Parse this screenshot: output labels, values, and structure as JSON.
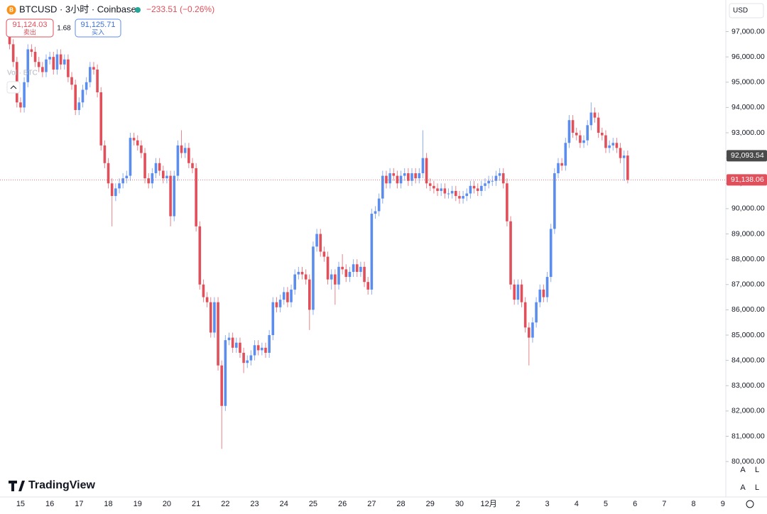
{
  "chart_data": {
    "type": "candlestick",
    "title": "BTCUSD · 3小时 · Coinbase",
    "change": "−233.51 (−0.26%)",
    "currency": "USD",
    "up_color": "#5b8def",
    "down_color": "#e04f5a",
    "categories": [
      null,
      null,
      null,
      "15",
      null,
      null,
      null,
      null,
      null,
      null,
      null,
      "16",
      null,
      null,
      null,
      null,
      null,
      null,
      null,
      "17",
      null,
      null,
      null,
      null,
      null,
      null,
      null,
      "18",
      null,
      null,
      null,
      null,
      null,
      null,
      null,
      "19",
      null,
      null,
      null,
      null,
      null,
      null,
      null,
      "20",
      null,
      null,
      null,
      null,
      null,
      null,
      null,
      "21",
      null,
      null,
      null,
      null,
      null,
      null,
      null,
      "22",
      null,
      null,
      null,
      null,
      null,
      null,
      null,
      "23",
      null,
      null,
      null,
      null,
      null,
      null,
      null,
      "24",
      null,
      null,
      null,
      null,
      null,
      null,
      null,
      "25",
      null,
      null,
      null,
      null,
      null,
      null,
      null,
      "26",
      null,
      null,
      null,
      null,
      null,
      null,
      null,
      "27",
      null,
      null,
      null,
      null,
      null,
      null,
      null,
      "28",
      null,
      null,
      null,
      null,
      null,
      null,
      null,
      "29",
      null,
      null,
      null,
      null,
      null,
      null,
      null,
      "30",
      null,
      null,
      null,
      null,
      null,
      null,
      null,
      "12月",
      null,
      null,
      null,
      null,
      null,
      null,
      null,
      "2",
      null,
      null,
      null,
      null,
      null,
      null,
      null,
      "3",
      null,
      null,
      null,
      null,
      null,
      null,
      null,
      "4",
      null,
      null,
      null,
      null,
      null,
      null,
      null,
      "5",
      null,
      null,
      null,
      null,
      null,
      null,
      null,
      "6",
      null,
      null,
      null,
      null,
      null,
      null,
      null,
      "7",
      null,
      null,
      null,
      null,
      null,
      null,
      null,
      "8",
      null,
      null,
      null,
      null,
      null,
      null,
      null,
      "9"
    ],
    "open": [
      96800,
      96500,
      95800,
      94200,
      94000,
      95000,
      96300,
      96200,
      95800,
      95600,
      95400,
      95900,
      96000,
      95500,
      96100,
      95700,
      95900,
      95200,
      94900,
      93900,
      94200,
      94700,
      95000,
      95600,
      95500,
      94600,
      92500,
      91800,
      91000,
      90500,
      90800,
      91000,
      91200,
      91300,
      92800,
      92700,
      92500,
      92200,
      91200,
      91000,
      91400,
      91800,
      91500,
      91200,
      91300,
      89700,
      91300,
      92500,
      92200,
      92400,
      91800,
      91600,
      89300,
      87000,
      86500,
      86300,
      85100,
      86300,
      83800,
      82200,
      84800,
      84900,
      84500,
      84700,
      84300,
      83900,
      84000,
      84200,
      84600,
      84400,
      84500,
      84300,
      85000,
      86300,
      86100,
      86400,
      86700,
      86300,
      86800,
      87400,
      87500,
      87400,
      87200,
      86000,
      88500,
      89000,
      88300,
      88100,
      87200,
      87400,
      87000,
      87700,
      87600,
      87300,
      87500,
      87800,
      87500,
      87700,
      87100,
      86800,
      89800,
      89900,
      90400,
      91300,
      91000,
      91400,
      91300,
      91000,
      91300,
      91400,
      91100,
      91400,
      91200,
      91400,
      92000,
      91000,
      90900,
      90800,
      90700,
      90800,
      90600,
      90600,
      90700,
      90500,
      90400,
      90500,
      90600,
      90900,
      90800,
      90700,
      90900,
      91000,
      91100,
      91100,
      91300,
      91400,
      91000,
      89500,
      87000,
      86400,
      87000,
      86300,
      85300,
      84900,
      85500,
      86300,
      86800,
      86500,
      87300,
      89200,
      91400,
      91800,
      91700,
      92600,
      93500,
      93000,
      92900,
      92600,
      92700,
      93300,
      93800,
      93600,
      93000,
      92900,
      92400,
      92500,
      92600,
      92400,
      92000,
      92100,
      null,
      null,
      null,
      null,
      null,
      null,
      null,
      null,
      null,
      null,
      null,
      null,
      null,
      null,
      null,
      null,
      null,
      null,
      null,
      null,
      null,
      null,
      null,
      null,
      null,
      null
    ],
    "high": [
      97000,
      96700,
      96000,
      94400,
      95200,
      96500,
      96500,
      96400,
      96000,
      95800,
      96100,
      96200,
      96200,
      96300,
      96300,
      96100,
      96100,
      95400,
      95100,
      94400,
      94900,
      95200,
      95800,
      95800,
      95700,
      94800,
      92700,
      92000,
      91200,
      91000,
      91200,
      91400,
      91500,
      93000,
      93000,
      92900,
      92700,
      92400,
      91400,
      91600,
      92000,
      92000,
      91700,
      91500,
      91500,
      91500,
      92700,
      93100,
      92600,
      92600,
      92000,
      91800,
      89500,
      87200,
      86700,
      86500,
      86500,
      86500,
      84000,
      85000,
      85100,
      85100,
      84900,
      84900,
      84500,
      84200,
      84400,
      84800,
      84800,
      84700,
      84700,
      85200,
      86500,
      86500,
      86600,
      86900,
      86900,
      87000,
      87600,
      87700,
      87700,
      87600,
      87400,
      88700,
      89200,
      89200,
      88500,
      88300,
      87600,
      87600,
      87900,
      88200,
      87800,
      87700,
      88000,
      88000,
      87900,
      87900,
      87300,
      90000,
      90100,
      90600,
      91500,
      91500,
      91600,
      91600,
      91500,
      91500,
      91600,
      91600,
      91600,
      91600,
      91600,
      93100,
      92200,
      91200,
      91100,
      91000,
      91000,
      91000,
      90800,
      90900,
      90900,
      90700,
      90700,
      90800,
      91100,
      91100,
      91000,
      91100,
      91200,
      91300,
      91300,
      91500,
      91600,
      91600,
      91200,
      89700,
      87200,
      87200,
      87200,
      86500,
      85500,
      85700,
      86500,
      87000,
      87000,
      87500,
      89400,
      91600,
      92000,
      92000,
      92800,
      93700,
      93700,
      93200,
      93100,
      92900,
      93500,
      94200,
      94000,
      93800,
      93200,
      93100,
      92700,
      92800,
      92800,
      92600,
      92300,
      92300,
      null,
      null,
      null,
      null,
      null,
      null,
      null,
      null,
      null,
      null,
      null,
      null,
      null,
      null,
      null,
      null,
      null,
      null,
      null,
      null,
      null,
      null,
      null,
      null,
      null,
      null
    ],
    "low": [
      96300,
      95600,
      94000,
      93800,
      93800,
      94800,
      96000,
      95600,
      95400,
      95200,
      95200,
      95700,
      95300,
      95300,
      95500,
      95500,
      95000,
      94700,
      93700,
      93700,
      94000,
      94500,
      94800,
      95300,
      94400,
      92300,
      91600,
      90800,
      89300,
      90300,
      90600,
      90800,
      91000,
      91100,
      92500,
      92300,
      92000,
      91000,
      90800,
      90800,
      91200,
      91300,
      91000,
      91000,
      89300,
      89500,
      91100,
      92000,
      92000,
      91600,
      91400,
      89100,
      86800,
      86300,
      86100,
      84900,
      84900,
      83600,
      80500,
      82000,
      84600,
      84300,
      84300,
      84100,
      83500,
      83700,
      83800,
      84000,
      84200,
      84200,
      84100,
      84100,
      84800,
      85900,
      85900,
      86200,
      86100,
      86100,
      86600,
      87200,
      87200,
      87000,
      85200,
      85800,
      88300,
      88100,
      87900,
      87000,
      86800,
      86200,
      86800,
      87400,
      87100,
      87100,
      87300,
      87300,
      87300,
      86900,
      86600,
      86600,
      89600,
      89700,
      90200,
      90800,
      90800,
      91100,
      90800,
      90800,
      91100,
      90900,
      90900,
      91000,
      91000,
      91200,
      90800,
      90700,
      90600,
      90500,
      90500,
      90400,
      90400,
      90400,
      90300,
      90200,
      90200,
      90300,
      90400,
      90600,
      90500,
      90500,
      90700,
      90800,
      90900,
      90900,
      91100,
      90800,
      89300,
      86800,
      86200,
      86200,
      86100,
      85100,
      83800,
      84700,
      85300,
      86100,
      86300,
      86300,
      87100,
      89000,
      91200,
      91500,
      91500,
      92400,
      92800,
      92700,
      92400,
      92400,
      92500,
      93100,
      93400,
      92800,
      92700,
      92200,
      92200,
      92300,
      92200,
      91800,
      91100,
      91000,
      null,
      null,
      null,
      null,
      null,
      null,
      null,
      null,
      null,
      null,
      null,
      null,
      null,
      null,
      null,
      null,
      null,
      null,
      null,
      null,
      null,
      null,
      null,
      null,
      null,
      null
    ],
    "close": [
      96500,
      95800,
      94200,
      94000,
      95000,
      96300,
      96200,
      95800,
      95600,
      95400,
      95900,
      96000,
      95500,
      96100,
      95700,
      95900,
      95200,
      94900,
      93900,
      94200,
      94700,
      95000,
      95600,
      95500,
      94600,
      92500,
      91800,
      91000,
      90500,
      90800,
      91000,
      91200,
      91300,
      92800,
      92700,
      92500,
      92200,
      91200,
      91000,
      91400,
      91800,
      91500,
      91200,
      91300,
      89700,
      91300,
      92500,
      92200,
      92400,
      91800,
      91600,
      89300,
      87000,
      86500,
      86300,
      85100,
      86300,
      83800,
      82200,
      84800,
      84900,
      84500,
      84700,
      84300,
      83900,
      84000,
      84200,
      84600,
      84400,
      84500,
      84300,
      85000,
      86300,
      86100,
      86400,
      86700,
      86300,
      86800,
      87400,
      87500,
      87400,
      87200,
      86000,
      88500,
      89000,
      88300,
      88100,
      87200,
      87400,
      87000,
      87700,
      87600,
      87300,
      87500,
      87800,
      87500,
      87700,
      87100,
      86800,
      89800,
      89900,
      90400,
      91300,
      91000,
      91400,
      91300,
      91000,
      91300,
      91400,
      91100,
      91400,
      91200,
      91400,
      92000,
      91000,
      90900,
      90800,
      90700,
      90800,
      90600,
      90600,
      90700,
      90500,
      90400,
      90500,
      90600,
      90900,
      90800,
      90700,
      90900,
      91000,
      91100,
      91100,
      91300,
      91400,
      91000,
      89500,
      87000,
      86400,
      87000,
      86300,
      85300,
      84900,
      85500,
      86300,
      86800,
      86500,
      87300,
      89200,
      91400,
      91800,
      91700,
      92600,
      93500,
      93000,
      92900,
      92600,
      92700,
      93300,
      93800,
      93600,
      93000,
      92900,
      92400,
      92500,
      92600,
      92400,
      92000,
      92100,
      91138,
      null,
      null,
      null,
      null,
      null,
      null,
      null,
      null,
      null,
      null,
      null,
      null,
      null,
      null,
      null,
      null,
      null,
      null,
      null,
      null,
      null,
      null,
      null,
      null,
      null,
      null
    ],
    "ylim": [
      78600,
      98250
    ],
    "yticks": [
      {
        "value": 80000,
        "label": "80,000.00"
      },
      {
        "value": 81000,
        "label": "81,000.00"
      },
      {
        "value": 82000,
        "label": "82,000.00"
      },
      {
        "value": 83000,
        "label": "83,000.00"
      },
      {
        "value": 84000,
        "label": "84,000.00"
      },
      {
        "value": 85000,
        "label": "85,000.00"
      },
      {
        "value": 86000,
        "label": "86,000.00"
      },
      {
        "value": 87000,
        "label": "87,000.00"
      },
      {
        "value": 88000,
        "label": "88,000.00"
      },
      {
        "value": 89000,
        "label": "89,000.00"
      },
      {
        "value": 90000,
        "label": "90,000.00"
      },
      {
        "value": 91000,
        "label": "91,000.00"
      },
      {
        "value": 92000,
        "label": "92,000.00"
      },
      {
        "value": 93000,
        "label": "93,000.00"
      },
      {
        "value": 94000,
        "label": "94,000.00"
      },
      {
        "value": 95000,
        "label": "95,000.00"
      },
      {
        "value": 96000,
        "label": "96,000.00"
      },
      {
        "value": 97000,
        "label": "97,000.00"
      }
    ],
    "price_tags": [
      {
        "value": 92093.54,
        "label": "92,093.54",
        "color": "#4a4a4a"
      },
      {
        "value": 91138.06,
        "label": "91,138.06",
        "color": "#e04f5a"
      }
    ]
  },
  "quote": {
    "sell": {
      "price": "91,124.03",
      "label": "卖出"
    },
    "spread": "1.68",
    "buy": {
      "price": "91,125.71",
      "label": "买入"
    }
  },
  "indicator": "Vol · BTC",
  "brand": "TradingView",
  "controls": [
    "A",
    "L"
  ]
}
